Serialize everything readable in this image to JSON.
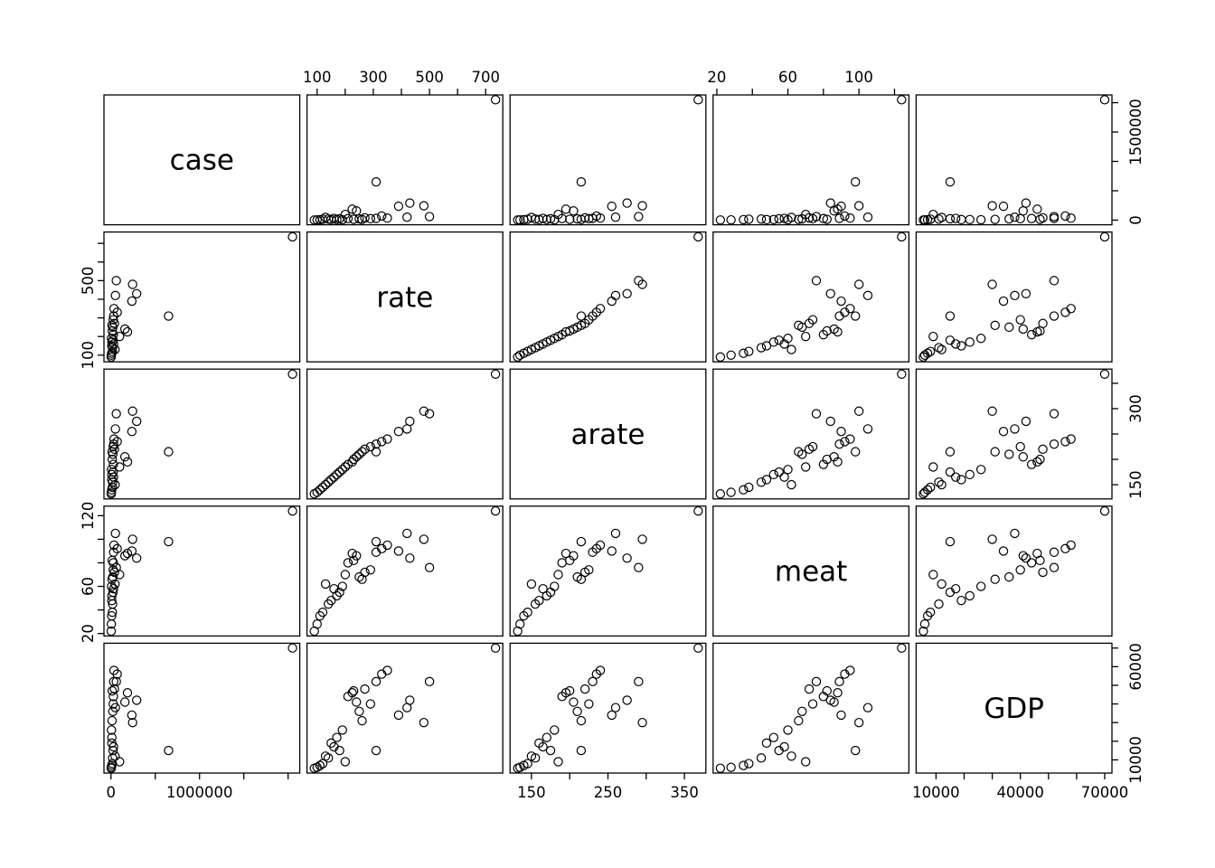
{
  "figure": {
    "background": "#ffffff",
    "stroke_color": "#000000",
    "point_style": "open-circle"
  },
  "chart_data": {
    "type": "scatter",
    "subtype": "scatterplot-matrix",
    "title": "",
    "grid": false,
    "legend": false,
    "variables": [
      "case",
      "rate",
      "arate",
      "meat",
      "GDP"
    ],
    "axes": {
      "case": {
        "range": [
          -79400,
          2131900
        ],
        "ticks": [
          0,
          500000,
          1000000,
          1500000,
          2000000
        ],
        "h_labels": {
          "0": "0",
          "1000000": "1000000"
        },
        "v_labels": {
          "0": "0",
          "1500000": "1500000"
        }
      },
      "rate": {
        "range": [
          64,
          761
        ],
        "ticks": [
          100,
          200,
          300,
          400,
          500,
          600,
          700
        ],
        "h_labels": {
          "100": "100",
          "300": "300",
          "500": "500",
          "700": "700"
        },
        "v_labels": {
          "100": "100",
          "500": "500"
        }
      },
      "arate": {
        "range": [
          122,
          378
        ],
        "ticks": [
          150,
          200,
          250,
          300,
          350
        ],
        "h_labels": {
          "150": "150",
          "250": "250",
          "350": "350"
        },
        "v_labels": {
          "150": "150",
          "300": "300"
        }
      },
      "meat": {
        "range": [
          17.9,
          128.1
        ],
        "ticks": [
          20,
          40,
          60,
          80,
          100,
          120
        ],
        "h_labels": {
          "20": "20",
          "60": "60",
          "100": "100"
        },
        "v_labels": {
          "20": "20",
          "60": "60",
          "120": "120"
        }
      },
      "GDP": {
        "range": [
          2920,
          72580
        ],
        "ticks": [
          10000,
          20000,
          30000,
          40000,
          50000,
          60000,
          70000
        ],
        "h_labels": {
          "10000": "10000",
          "40000": "40000",
          "70000": "70000"
        },
        "v_labels": {
          "10000": "10000",
          "60000": "60000"
        }
      }
    },
    "points": [
      [
        2050000,
        735,
        368,
        124,
        70000
      ],
      [
        650000,
        310,
        215,
        98,
        15000
      ],
      [
        290000,
        430,
        275,
        84,
        42000
      ],
      [
        244000,
        480,
        295,
        100,
        30000
      ],
      [
        236000,
        390,
        255,
        90,
        34000
      ],
      [
        186000,
        225,
        195,
        88,
        46000
      ],
      [
        157000,
        240,
        205,
        86,
        41000
      ],
      [
        97000,
        200,
        185,
        70,
        9000
      ],
      [
        60000,
        500,
        290,
        76,
        52000
      ],
      [
        46000,
        130,
        150,
        62,
        12000
      ],
      [
        39000,
        270,
        220,
        72,
        48000
      ],
      [
        34000,
        350,
        240,
        95,
        58000
      ],
      [
        30000,
        310,
        230,
        89,
        52000
      ],
      [
        29000,
        160,
        165,
        58,
        17000
      ],
      [
        27000,
        210,
        190,
        80,
        44000
      ],
      [
        25000,
        290,
        225,
        74,
        40000
      ],
      [
        23000,
        180,
        175,
        55,
        15000
      ],
      [
        21000,
        250,
        210,
        68,
        36000
      ],
      [
        18000,
        140,
        155,
        45,
        11000
      ],
      [
        16000,
        120,
        145,
        38,
        8000
      ],
      [
        14000,
        230,
        200,
        82,
        47000
      ],
      [
        12000,
        260,
        215,
        66,
        31000
      ],
      [
        10000,
        170,
        170,
        52,
        22000
      ],
      [
        9000,
        150,
        160,
        48,
        19000
      ],
      [
        8000,
        110,
        140,
        35,
        7000
      ],
      [
        6000,
        190,
        180,
        60,
        26000
      ],
      [
        4000,
        100,
        135,
        28,
        6000
      ],
      [
        2500,
        90,
        132,
        22,
        5500
      ],
      [
        50000,
        420,
        260,
        105,
        38000
      ],
      [
        70000,
        330,
        235,
        92,
        56000
      ]
    ]
  }
}
